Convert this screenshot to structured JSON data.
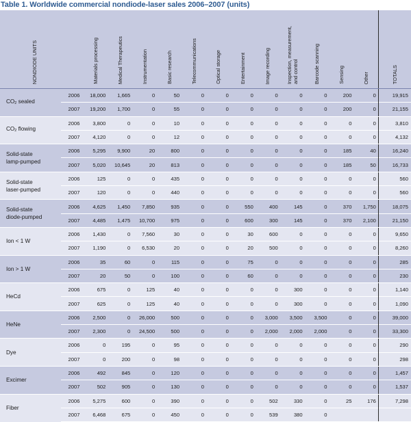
{
  "title": "Table 1. Worldwide commercial nondiode-laser sales 2006–2007 (units)",
  "header": {
    "label_col": "NONDIODE UNITS",
    "columns": [
      "Materials processing",
      "Medical Therapeutics",
      "Instrumentation",
      "Basic research",
      "Telecommunications",
      "Optical storage",
      "Entertainment",
      "Image recording",
      [
        "Inspection, measurement,",
        "and control"
      ],
      "Barcode scanning",
      "Sensing",
      "Other"
    ],
    "total_col": "TOTALS"
  },
  "groups": [
    {
      "label_main": "CO",
      "label_sub": "2",
      "label_rest": " sealed",
      "rows": [
        {
          "year": "2006",
          "values": [
            "18,000",
            "1,665",
            "0",
            "50",
            "0",
            "0",
            "0",
            "0",
            "0",
            "0",
            "200",
            "0"
          ],
          "total": "19,915"
        },
        {
          "year": "2007",
          "values": [
            "19,200",
            "1,700",
            "0",
            "55",
            "0",
            "0",
            "0",
            "0",
            "0",
            "0",
            "200",
            "0"
          ],
          "total": "21,155"
        }
      ]
    },
    {
      "label_main": "CO",
      "label_sub": "2",
      "label_rest": " flowing",
      "rows": [
        {
          "year": "2006",
          "values": [
            "3,800",
            "0",
            "0",
            "10",
            "0",
            "0",
            "0",
            "0",
            "0",
            "0",
            "0",
            "0"
          ],
          "total": "3,810"
        },
        {
          "year": "2007",
          "values": [
            "4,120",
            "0",
            "0",
            "12",
            "0",
            "0",
            "0",
            "0",
            "0",
            "0",
            "0",
            "0"
          ],
          "total": "4,132"
        }
      ]
    },
    {
      "label_lines": [
        "Solid-state",
        "lamp-pumped"
      ],
      "rows": [
        {
          "year": "2006",
          "values": [
            "5,295",
            "9,900",
            "20",
            "800",
            "0",
            "0",
            "0",
            "0",
            "0",
            "0",
            "185",
            "40"
          ],
          "total": "16,240"
        },
        {
          "year": "2007",
          "values": [
            "5,020",
            "10,645",
            "20",
            "813",
            "0",
            "0",
            "0",
            "0",
            "0",
            "0",
            "185",
            "50"
          ],
          "total": "16,733"
        }
      ]
    },
    {
      "label_lines": [
        "Solid-state",
        "laser-pumped"
      ],
      "rows": [
        {
          "year": "2006",
          "values": [
            "125",
            "0",
            "0",
            "435",
            "0",
            "0",
            "0",
            "0",
            "0",
            "0",
            "0",
            "0"
          ],
          "total": "560"
        },
        {
          "year": "2007",
          "values": [
            "120",
            "0",
            "0",
            "440",
            "0",
            "0",
            "0",
            "0",
            "0",
            "0",
            "0",
            "0"
          ],
          "total": "560"
        }
      ]
    },
    {
      "label_lines": [
        "Solid-state",
        "diode-pumped"
      ],
      "rows": [
        {
          "year": "2006",
          "values": [
            "4,625",
            "1,450",
            "7,850",
            "935",
            "0",
            "0",
            "550",
            "400",
            "145",
            "0",
            "370",
            "1,750"
          ],
          "total": "18,075"
        },
        {
          "year": "2007",
          "values": [
            "4,485",
            "1,475",
            "10,700",
            "975",
            "0",
            "0",
            "600",
            "300",
            "145",
            "0",
            "370",
            "2,100"
          ],
          "total": "21,150"
        }
      ]
    },
    {
      "label_lines": [
        "Ion < 1 W"
      ],
      "rows": [
        {
          "year": "2006",
          "values": [
            "1,430",
            "0",
            "7,560",
            "30",
            "0",
            "0",
            "30",
            "600",
            "0",
            "0",
            "0",
            "0"
          ],
          "total": "9,650"
        },
        {
          "year": "2007",
          "values": [
            "1,190",
            "0",
            "6,530",
            "20",
            "0",
            "0",
            "20",
            "500",
            "0",
            "0",
            "0",
            "0"
          ],
          "total": "8,260"
        }
      ]
    },
    {
      "label_lines": [
        "Ion > 1 W"
      ],
      "rows": [
        {
          "year": "2006",
          "values": [
            "35",
            "60",
            "0",
            "115",
            "0",
            "0",
            "75",
            "0",
            "0",
            "0",
            "0",
            "0"
          ],
          "total": "285"
        },
        {
          "year": "2007",
          "values": [
            "20",
            "50",
            "0",
            "100",
            "0",
            "0",
            "60",
            "0",
            "0",
            "0",
            "0",
            "0"
          ],
          "total": "230"
        }
      ]
    },
    {
      "label_lines": [
        "HeCd"
      ],
      "rows": [
        {
          "year": "2006",
          "values": [
            "675",
            "0",
            "125",
            "40",
            "0",
            "0",
            "0",
            "0",
            "300",
            "0",
            "0",
            "0"
          ],
          "total": "1,140"
        },
        {
          "year": "2007",
          "values": [
            "625",
            "0",
            "125",
            "40",
            "0",
            "0",
            "0",
            "0",
            "300",
            "0",
            "0",
            "0"
          ],
          "total": "1,090"
        }
      ]
    },
    {
      "label_lines": [
        "HeNe"
      ],
      "rows": [
        {
          "year": "2006",
          "values": [
            "2,500",
            "0",
            "26,000",
            "500",
            "0",
            "0",
            "0",
            "3,000",
            "3,500",
            "3,500",
            "0",
            "0"
          ],
          "total": "39,000"
        },
        {
          "year": "2007",
          "values": [
            "2,300",
            "0",
            "24,500",
            "500",
            "0",
            "0",
            "0",
            "2,000",
            "2,000",
            "2,000",
            "0",
            "0"
          ],
          "total": "33,300"
        }
      ]
    },
    {
      "label_lines": [
        "Dye"
      ],
      "rows": [
        {
          "year": "2006",
          "values": [
            "0",
            "195",
            "0",
            "95",
            "0",
            "0",
            "0",
            "0",
            "0",
            "0",
            "0",
            "0"
          ],
          "total": "290"
        },
        {
          "year": "2007",
          "values": [
            "0",
            "200",
            "0",
            "98",
            "0",
            "0",
            "0",
            "0",
            "0",
            "0",
            "0",
            "0"
          ],
          "total": "298"
        }
      ]
    },
    {
      "label_lines": [
        "Excimer"
      ],
      "rows": [
        {
          "year": "2006",
          "values": [
            "492",
            "845",
            "0",
            "120",
            "0",
            "0",
            "0",
            "0",
            "0",
            "0",
            "0",
            "0"
          ],
          "total": "1,457"
        },
        {
          "year": "2007",
          "values": [
            "502",
            "905",
            "0",
            "130",
            "0",
            "0",
            "0",
            "0",
            "0",
            "0",
            "0",
            "0"
          ],
          "total": "1,537"
        }
      ]
    },
    {
      "label_lines": [
        "Fiber"
      ],
      "rows": [
        {
          "year": "2006",
          "values": [
            "5,275",
            "600",
            "0",
            "390",
            "0",
            "0",
            "0",
            "502",
            "330",
            "0",
            "25",
            "176"
          ],
          "total": "7,298"
        },
        {
          "year": "2007",
          "values": [
            "6,468",
            "675",
            "0",
            "450",
            "0",
            "0",
            "0",
            "539",
            "380",
            "0",
            "",
            ""
          ],
          "total": ""
        }
      ]
    }
  ]
}
